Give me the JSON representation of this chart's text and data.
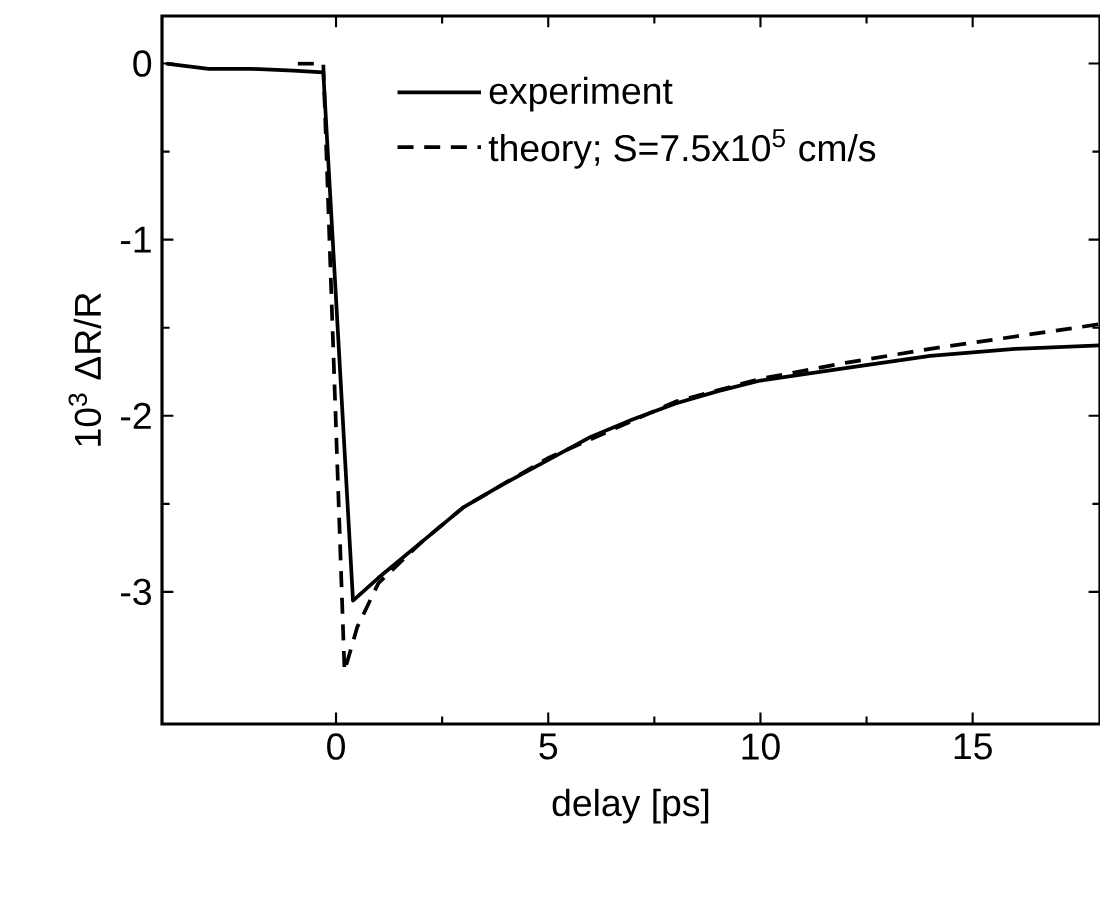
{
  "chart_data": {
    "type": "line",
    "xlabel": "delay [ps]",
    "ylabel": "10$^{3}$ ΔR/R",
    "xlim": [
      -4.1,
      18
    ],
    "ylim": [
      -3.75,
      0.27
    ],
    "xticks": [
      0,
      5,
      10,
      15
    ],
    "yticks": [
      -3,
      -2,
      -1,
      0
    ],
    "legend": "top right",
    "grid": false,
    "marker": "none",
    "series": [
      {
        "name": "experiment",
        "color": "#000000",
        "line_style": "solid",
        "x": [
          -4,
          -3,
          -2,
          -1,
          -0.3,
          0.4,
          1,
          2,
          3,
          4,
          5,
          6,
          7,
          8,
          9,
          10,
          12,
          14,
          16,
          18
        ],
        "values": [
          0.0,
          -0.03,
          -0.03,
          -0.04,
          -0.05,
          -3.05,
          -2.92,
          -2.72,
          -2.52,
          -2.38,
          -2.25,
          -2.12,
          -2.02,
          -1.93,
          -1.86,
          -1.8,
          -1.73,
          -1.66,
          -1.62,
          -1.6
        ]
      },
      {
        "name": "theory; S=7.5x10$^{5}$ cm/s",
        "color": "#000000",
        "line_style": "dashed",
        "x": [
          -0.9,
          -0.3,
          0.2,
          0.5,
          1,
          2,
          3,
          5,
          8,
          10,
          12,
          14,
          16,
          18
        ],
        "values": [
          0.0,
          0.0,
          -3.45,
          -3.2,
          -2.95,
          -2.72,
          -2.52,
          -2.24,
          -1.92,
          -1.79,
          -1.7,
          -1.62,
          -1.55,
          -1.48
        ]
      }
    ]
  }
}
